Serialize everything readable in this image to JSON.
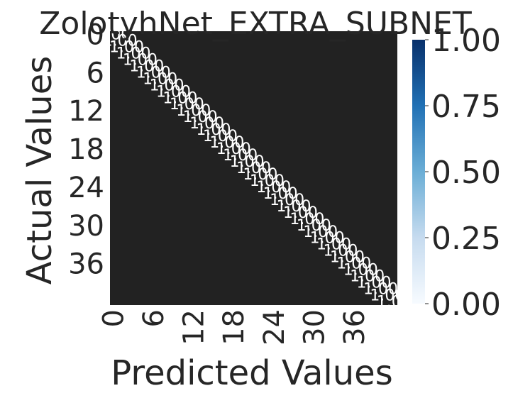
{
  "chart_data": {
    "type": "heatmap",
    "title": "ZolotyhNet_EXTRA_SUBNET",
    "xlabel": "Predicted Values",
    "ylabel": "Actual Values",
    "n_classes": 43,
    "x_tick_labels": [
      "0",
      "6",
      "12",
      "18",
      "24",
      "30",
      "36"
    ],
    "y_tick_labels": [
      "0",
      "6",
      "12",
      "18",
      "24",
      "30",
      "36"
    ],
    "colorbar": {
      "min": 0.0,
      "max": 1.0,
      "tick_labels": [
        "0.00",
        "0.25",
        "0.50",
        "0.75",
        "1.00"
      ],
      "colormap": "Blues"
    },
    "diagonal_value": 1.0,
    "off_diagonal_value": 0.0,
    "background_color": "#222222",
    "annotation_color": "#ffffff"
  }
}
